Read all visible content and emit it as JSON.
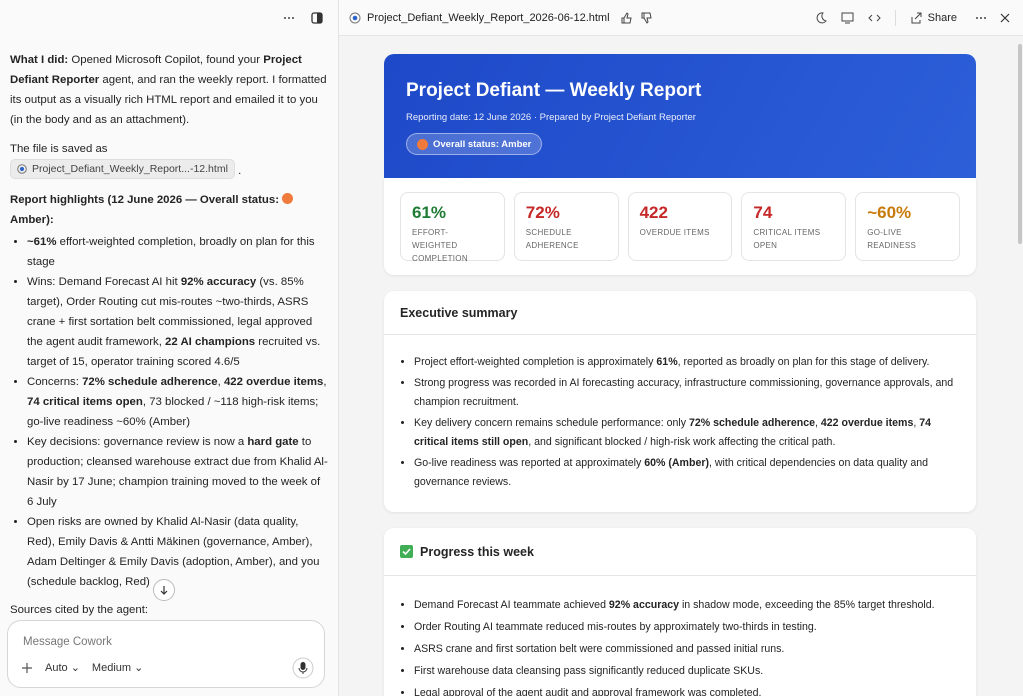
{
  "left": {
    "summary": [
      {
        "bold": "What I did:"
      },
      " Opened Microsoft Copilot, found your ",
      {
        "bold": "Project Defiant Reporter"
      },
      " agent, and ran the weekly report. I formatted its output as a visually rich HTML report and emailed it to you (in the body and as an attachment)."
    ],
    "file_intro": "The file is saved as",
    "file_chip": "Project_Defiant_Weekly_Report...-12.html",
    "file_end": ".",
    "highlights_before": "Report highlights (12 June 2026 — Overall status:",
    "highlights_after": "Amber):",
    "bullets": [
      [
        {
          "bold": "~61%"
        },
        " effort-weighted completion, broadly on plan for this stage"
      ],
      [
        "Wins: Demand Forecast AI hit ",
        {
          "bold": "92% accuracy"
        },
        " (vs. 85% target), Order Routing cut mis-routes ~two-thirds, ASRS crane + first sortation belt commissioned, legal approved the agent audit framework, ",
        {
          "bold": "22 AI champions"
        },
        " recruited vs. target of 15, operator training scored 4.6/5"
      ],
      [
        "Concerns: ",
        {
          "bold": "72% schedule adherence"
        },
        ", ",
        {
          "bold": "422 overdue items"
        },
        ", ",
        {
          "bold": "74 critical items open"
        },
        ", 73 blocked / ~118 high-risk items; go-live readiness ~60% (Amber)"
      ],
      [
        "Key decisions: governance review is now a ",
        {
          "bold": "hard gate"
        },
        " to production; cleansed warehouse extract due from Khalid Al-Nasir by 17 June; champion training moved to the week of 6 July"
      ],
      [
        "Open risks are owned by Khalid Al-Nasir (data quality, Red), Emily Davis & Antti Mäkinen (governance, Amber), Adam Deltinger & Emily Davis (adoption, Amber), and you (schedule backlog, Red)"
      ]
    ],
    "sources": "Sources cited by the agent: Project_Defiant_Weekly_Sync_Transcript.docx and Project_Defiant_KPI_Definitions.xlsx — both linked in the report.",
    "composer": {
      "placeholder": "Message Cowork",
      "mode": "Auto",
      "effort": "Medium"
    }
  },
  "right": {
    "file_name": "Project_Defiant_Weekly_Report_2026-06-12.html",
    "share": "Share",
    "report": {
      "title": "Project Defiant — Weekly Report",
      "subtitle": "Reporting date: 12 June 2026 · Prepared by Project Defiant Reporter",
      "status": "Overall status: Amber",
      "kpis": [
        {
          "value": "61%",
          "label": "EFFORT-WEIGHTED COMPLETION",
          "color": "#1e7b34"
        },
        {
          "value": "72%",
          "label": "SCHEDULE ADHERENCE",
          "color": "#c62828"
        },
        {
          "value": "422",
          "label": "OVERDUE ITEMS",
          "color": "#c62828"
        },
        {
          "value": "74",
          "label": "CRITICAL ITEMS OPEN",
          "color": "#c62828"
        },
        {
          "value": "~60%",
          "label": "GO-LIVE READINESS",
          "color": "#c77a0a"
        }
      ],
      "executive_summary": {
        "heading": "Executive summary",
        "bullets": [
          [
            "Project effort-weighted completion is approximately ",
            {
              "bold": "61%"
            },
            ", reported as broadly on plan for this stage of delivery."
          ],
          [
            "Strong progress was recorded in AI forecasting accuracy, infrastructure commissioning, governance approvals, and champion recruitment."
          ],
          [
            "Key delivery concern remains schedule performance: only ",
            {
              "bold": "72% schedule adherence"
            },
            ", ",
            {
              "bold": "422 overdue items"
            },
            ", ",
            {
              "bold": "74 critical items still open"
            },
            ", and significant blocked / high-risk work affecting the critical path."
          ],
          [
            "Go-live readiness was reported at approximately ",
            {
              "bold": "60% (Amber)"
            },
            ", with critical dependencies on data quality and governance reviews."
          ]
        ]
      },
      "progress": {
        "heading": "Progress this week",
        "bullets": [
          [
            "Demand Forecast AI teammate achieved ",
            {
              "bold": "92% accuracy"
            },
            " in shadow mode, exceeding the 85% target threshold."
          ],
          [
            "Order Routing AI teammate reduced mis-routes by approximately two-thirds in testing."
          ],
          [
            "ASRS crane and first sortation belt were commissioned and passed initial runs."
          ],
          [
            "First warehouse data cleansing pass significantly reduced duplicate SKUs."
          ],
          [
            "Legal approval of the agent audit and approval framework was completed."
          ]
        ]
      }
    }
  }
}
